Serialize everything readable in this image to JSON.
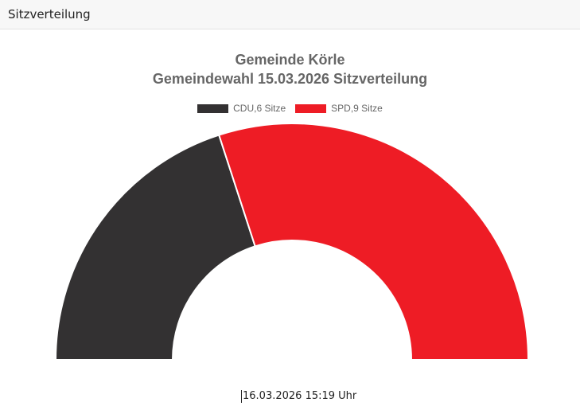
{
  "header": {
    "title": "Sitzverteilung"
  },
  "chart_data": {
    "type": "pie",
    "variant": "half-doughnut",
    "title": [
      "Gemeinde Körle",
      "Gemeindewahl 15.03.2026 Sitzverteilung"
    ],
    "legend_position": "top",
    "series": [
      {
        "name": "CDU",
        "label": "CDU,6 Sitze",
        "value": 6,
        "color": "#333132"
      },
      {
        "name": "SPD",
        "label": "SPD,9 Sitze",
        "value": 9,
        "color": "#ee1c25"
      }
    ],
    "slice_border_color": "#ffffff"
  },
  "footer": {
    "timestamp": "16.03.2026 15:19 Uhr"
  }
}
